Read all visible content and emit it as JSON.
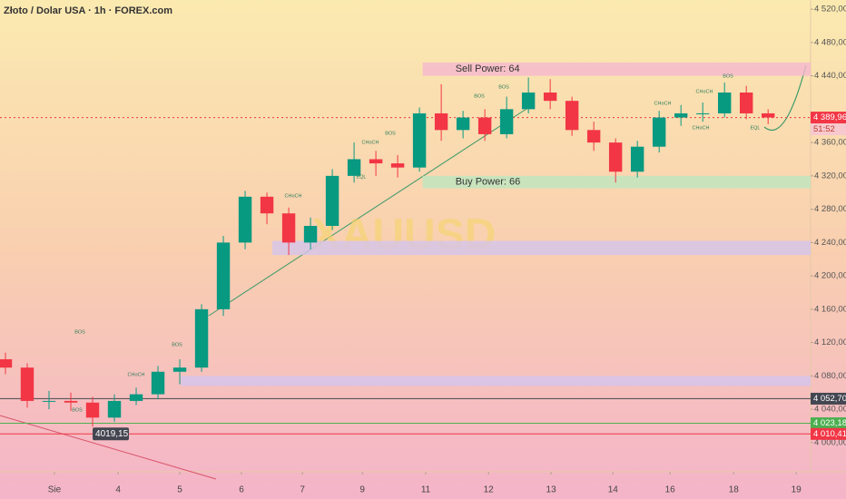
{
  "chart_data": {
    "type": "candlestick",
    "title": "Złoto / Dolar USA · 1h · FOREX.com",
    "watermark": "XAUUSD",
    "up_color": "#089981",
    "down_color": "#f23645",
    "open": [
      4100,
      4090,
      4050,
      4050,
      4048,
      4030,
      4050,
      4058,
      4085,
      4090,
      4160,
      4240,
      4295,
      4275,
      4240,
      4260,
      4320,
      4340,
      4335,
      4330,
      4395,
      4375,
      4390,
      4370,
      4400,
      4420,
      4410,
      4375,
      4360,
      4325,
      4355,
      4390,
      4395,
      4395,
      4420,
      4395
    ],
    "high": [
      4108,
      4095,
      4062,
      4060,
      4055,
      4058,
      4066,
      4092,
      4100,
      4166,
      4248,
      4302,
      4300,
      4282,
      4270,
      4328,
      4360,
      4350,
      4345,
      4402,
      4430,
      4398,
      4400,
      4415,
      4438,
      4436,
      4415,
      4385,
      4365,
      4362,
      4398,
      4405,
      4408,
      4432,
      4428,
      4400
    ],
    "low": [
      4082,
      4042,
      4040,
      4038,
      4019.15,
      4025,
      4045,
      4052,
      4070,
      4085,
      4152,
      4232,
      4262,
      4225,
      4232,
      4255,
      4312,
      4320,
      4318,
      4325,
      4362,
      4365,
      4362,
      4365,
      4395,
      4400,
      4368,
      4350,
      4312,
      4318,
      4348,
      4380,
      4385,
      4390,
      4388,
      4382
    ],
    "close": [
      4090,
      4050,
      4050,
      4048,
      4030,
      4050,
      4058,
      4085,
      4090,
      4160,
      4240,
      4295,
      4275,
      4240,
      4260,
      4320,
      4340,
      4335,
      4330,
      4395,
      4375,
      4390,
      4370,
      4400,
      4420,
      4410,
      4375,
      4360,
      4325,
      4355,
      4390,
      4395,
      4395,
      4420,
      4395,
      4390
    ],
    "xlim": [
      0,
      37.2
    ],
    "xticks": [
      {
        "value": 2.5,
        "label": "Sie"
      },
      {
        "value": 5.42,
        "label": "4"
      },
      {
        "value": 8.25,
        "label": "5"
      },
      {
        "value": 11.08,
        "label": "6"
      },
      {
        "value": 13.88,
        "label": "7"
      },
      {
        "value": 16.63,
        "label": "9"
      },
      {
        "value": 19.54,
        "label": "11"
      },
      {
        "value": 22.42,
        "label": "12"
      },
      {
        "value": 25.29,
        "label": "13"
      },
      {
        "value": 28.13,
        "label": "14"
      },
      {
        "value": 30.75,
        "label": "16"
      },
      {
        "value": 33.67,
        "label": "18"
      },
      {
        "value": 36.54,
        "label": "19"
      }
    ],
    "ylim": [
      3965,
      4531
    ],
    "yticks": [
      {
        "value": 4520,
        "label": "4 520,00"
      },
      {
        "value": 4480,
        "label": "4 480,00"
      },
      {
        "value": 4440,
        "label": "4 440,00"
      },
      {
        "value": 4360,
        "label": "4 360,00"
      },
      {
        "value": 4320,
        "label": "4 320,00"
      },
      {
        "value": 4280,
        "label": "4 280,00"
      },
      {
        "value": 4240,
        "label": "4 240,00"
      },
      {
        "value": 4200,
        "label": "4 200,00"
      },
      {
        "value": 4160,
        "label": "4 160,00"
      },
      {
        "value": 4120,
        "label": "4 120,00"
      },
      {
        "value": 4080,
        "label": "4 080,00"
      },
      {
        "value": 4040,
        "label": "4 040,00"
      },
      {
        "value": 4000,
        "label": "4 000,00"
      }
    ],
    "zones": [
      {
        "label": "Sell Power: 64",
        "x0": 19.4,
        "low": 4440,
        "high": 4456,
        "color": "#f6b8cf"
      },
      {
        "label": "Buy Power: 66",
        "x0": 19.4,
        "low": 4305,
        "high": 4320,
        "color": "#bde7c0"
      },
      {
        "x0": 12.5,
        "low": 4225,
        "high": 4242,
        "color": "#d4c4ee"
      },
      {
        "x0": 8.3,
        "low": 4068,
        "high": 4080,
        "color": "#d4c4ee"
      }
    ],
    "price_tags": [
      {
        "value": 4389.96,
        "label": "4 389,96",
        "color": "#f23645"
      },
      {
        "value": 4052.7,
        "label": "4 052,70",
        "color": "#434651"
      },
      {
        "value": 4023.18,
        "label": "4 023,18",
        "color": "#4caf50"
      },
      {
        "value": 4010.41,
        "label": "4 010,41",
        "color": "#f23645"
      }
    ],
    "countdown": "51:52",
    "low_label": {
      "value": 4019.15,
      "label": "4019,15"
    },
    "annotations": [
      "BOS",
      "BOS",
      "CHoCH",
      "BOS",
      "CHoCH",
      "CHoCH",
      "BOS",
      "EQL",
      "BOS",
      "BOS",
      "CHoCH",
      "CHoCH",
      "BOS",
      "CHoCH",
      "EQL"
    ]
  }
}
